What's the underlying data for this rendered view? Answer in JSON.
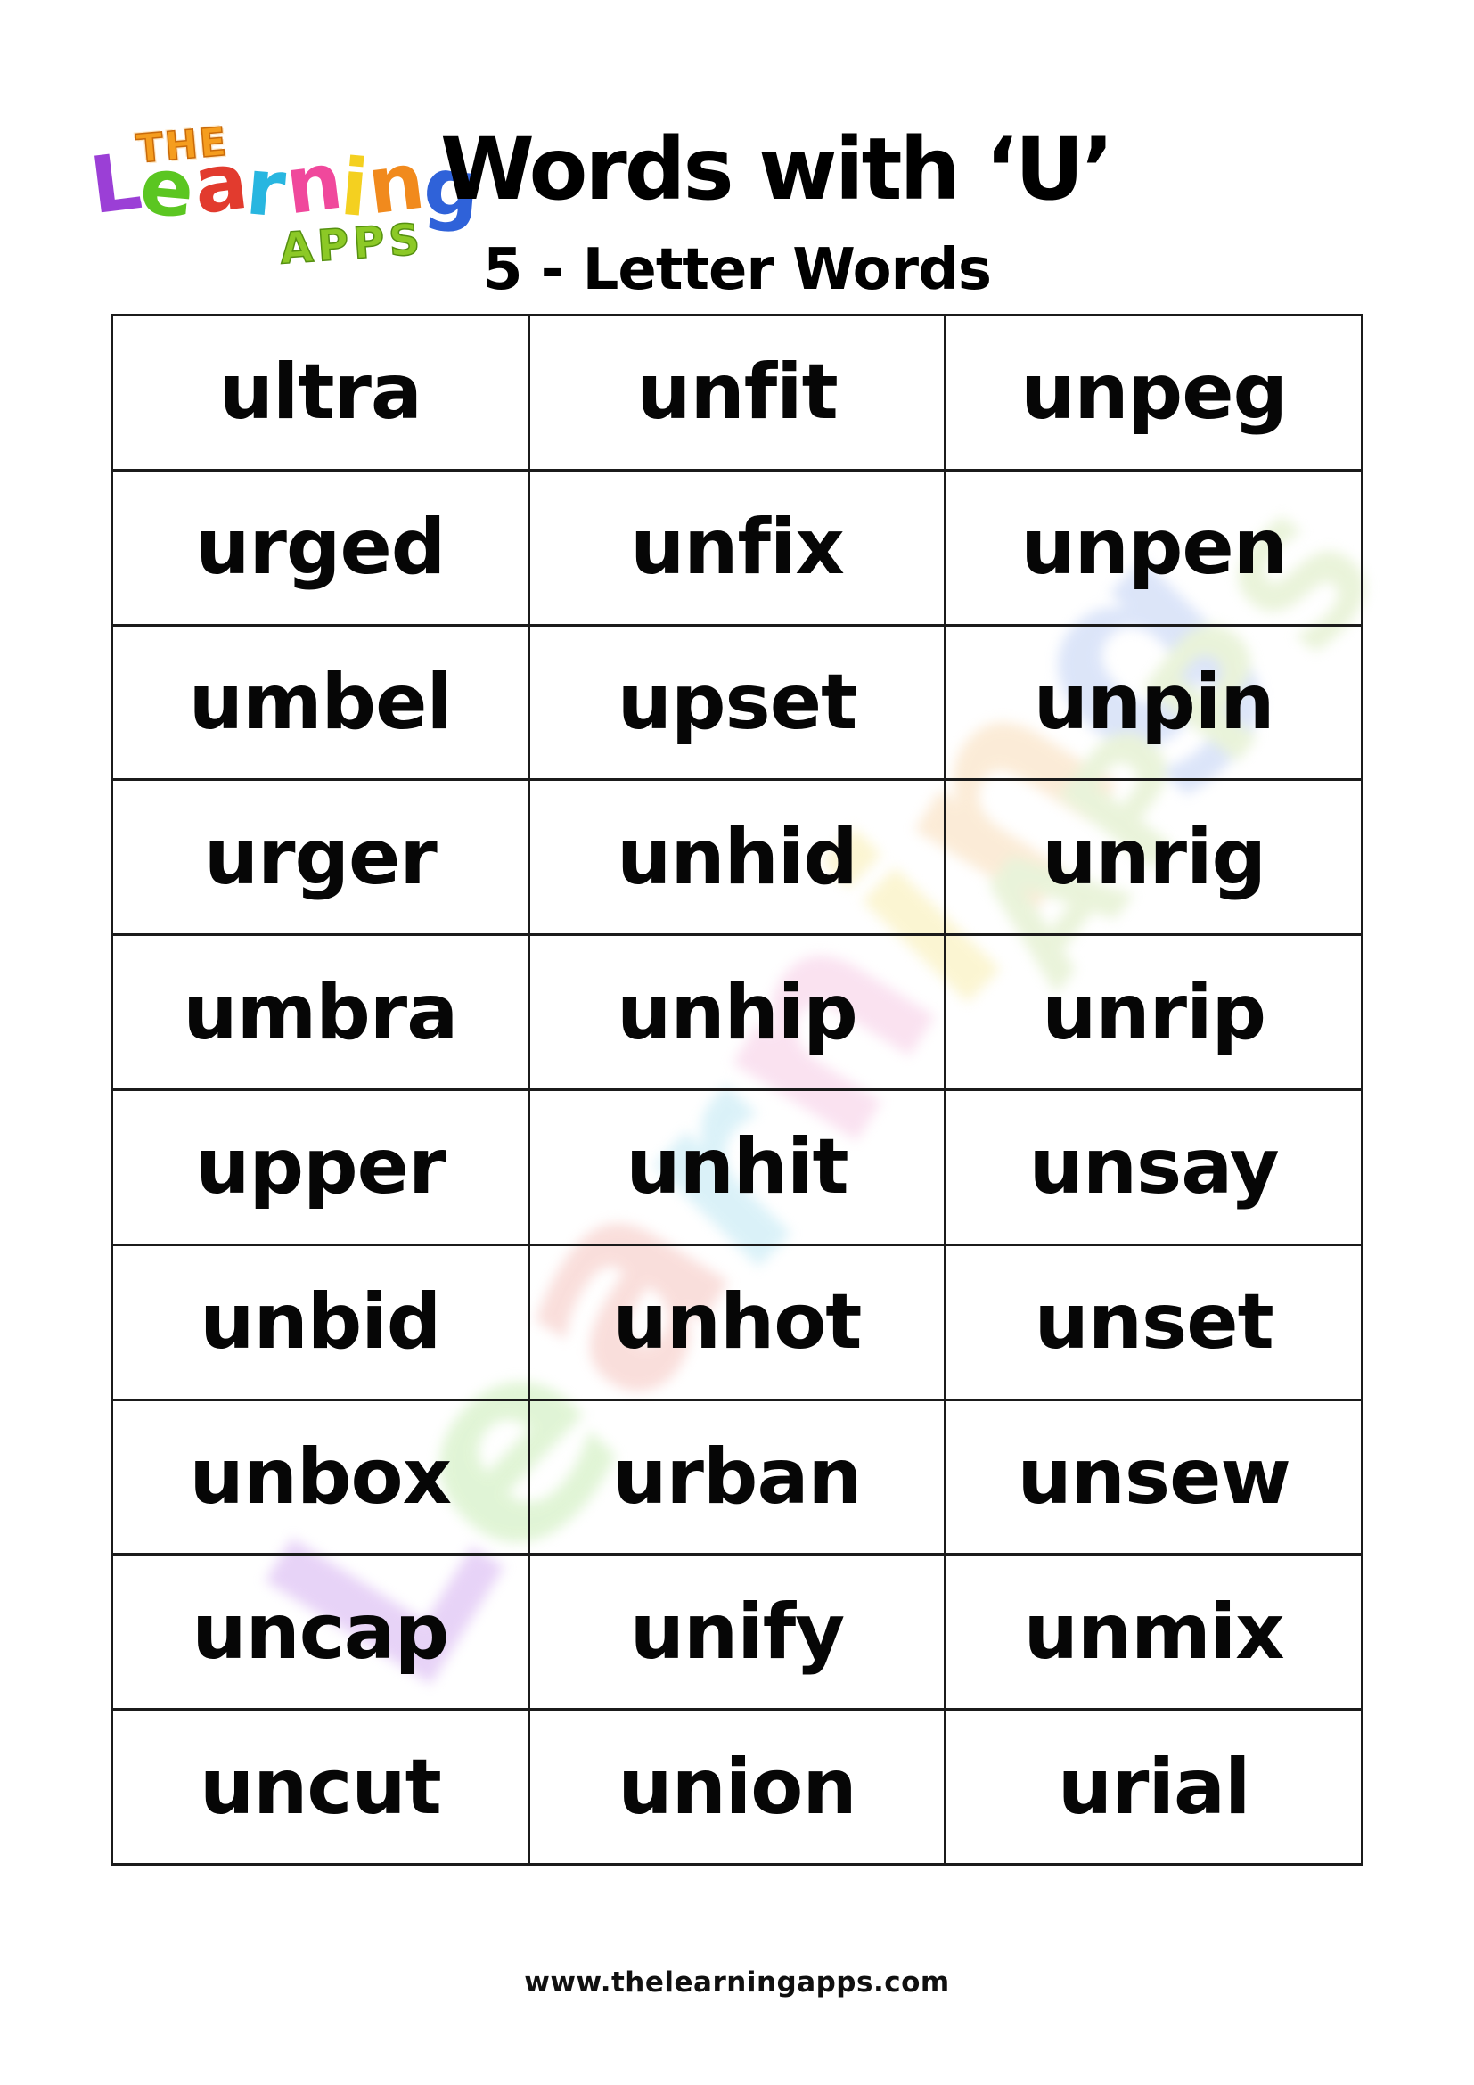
{
  "header": {
    "logo": {
      "the": "THE",
      "learning": [
        {
          "ch": "L",
          "color": "#9b3fd6"
        },
        {
          "ch": "e",
          "color": "#5bc621"
        },
        {
          "ch": "a",
          "color": "#e23b2e"
        },
        {
          "ch": "r",
          "color": "#28b6e0"
        },
        {
          "ch": "n",
          "color": "#f0489c"
        },
        {
          "ch": "i",
          "color": "#f4d020"
        },
        {
          "ch": "n",
          "color": "#f18a1d"
        },
        {
          "ch": "g",
          "color": "#2f62d9"
        }
      ],
      "apps": "APPS"
    },
    "title": "Words with ‘U’",
    "subtitle": "5 - Letter Words"
  },
  "word_table": {
    "columns": 3,
    "rows": [
      [
        "ultra",
        "unfit",
        "unpeg"
      ],
      [
        "urged",
        "unfix",
        "unpen"
      ],
      [
        "umbel",
        "upset",
        "unpin"
      ],
      [
        "urger",
        "unhid",
        "unrig"
      ],
      [
        "umbra",
        "unhip",
        "unrip"
      ],
      [
        "upper",
        "unhit",
        "unsay"
      ],
      [
        "unbid",
        "unhot",
        "unset"
      ],
      [
        "unbox",
        "urban",
        "unsew"
      ],
      [
        "uncap",
        "unify",
        "unmix"
      ],
      [
        "uncut",
        "union",
        "urial"
      ]
    ]
  },
  "watermark": {
    "line": [
      {
        "ch": "L",
        "color": "#d8b6f2"
      },
      {
        "ch": "e",
        "color": "#cdeebb"
      },
      {
        "ch": "a",
        "color": "#f6c9c4"
      },
      {
        "ch": "r",
        "color": "#c3e9f4"
      },
      {
        "ch": "n",
        "color": "#f7cfe7"
      },
      {
        "ch": "i",
        "color": "#f9efb5"
      },
      {
        "ch": "n",
        "color": "#f9dfbd"
      },
      {
        "ch": "g",
        "color": "#c5d4f5"
      }
    ],
    "apps": "APPS"
  },
  "footer": {
    "url": "www.thelearningapps.com"
  }
}
